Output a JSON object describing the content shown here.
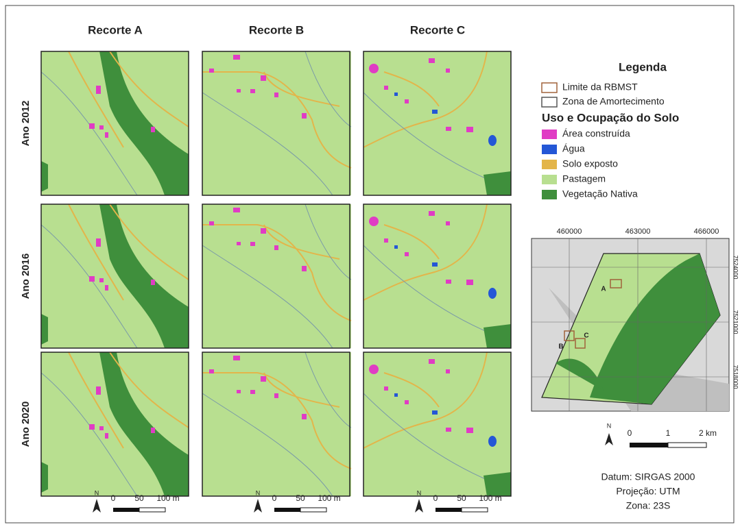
{
  "columns": [
    "Recorte A",
    "Recorte B",
    "Recorte C"
  ],
  "rows": [
    "Ano 2012",
    "Ano 2016",
    "Ano 2020"
  ],
  "legend": {
    "title": "Legenda",
    "boundaries": [
      {
        "label": "Limite da RBMST",
        "color": "#a0623a"
      },
      {
        "label": "Zona de Amortecimento",
        "color": "#555555"
      }
    ],
    "section_title": "Uso e Ocupação do Solo",
    "classes": [
      {
        "label": "Área construída",
        "color": "#e03cc4"
      },
      {
        "label": "Água",
        "color": "#2457d6"
      },
      {
        "label": "Solo exposto",
        "color": "#e3b54a"
      },
      {
        "label": "Pastagem",
        "color": "#b8df90"
      },
      {
        "label": "Vegetação Nativa",
        "color": "#3f8f3c"
      }
    ]
  },
  "panel_scale": {
    "north": "N",
    "labels": [
      "0",
      "50",
      "100 m"
    ]
  },
  "inset": {
    "x_labels": [
      "460000",
      "463000",
      "466000"
    ],
    "y_labels": [
      "7524000",
      "7521000",
      "7518000"
    ],
    "site_labels": [
      "A",
      "B",
      "C"
    ],
    "north": "N",
    "scale": [
      "0",
      "1",
      "2 km"
    ]
  },
  "notes": [
    "Datum: SIRGAS 2000",
    "Projeção: UTM",
    "Zona: 23S"
  ]
}
